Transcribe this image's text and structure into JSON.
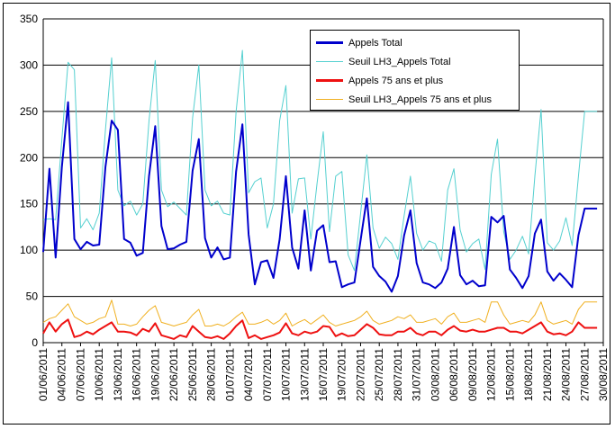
{
  "chart_data": {
    "type": "line",
    "title": "",
    "xlabel": "",
    "ylabel": "",
    "ylim": [
      0,
      350
    ],
    "yticks": [
      0,
      50,
      100,
      150,
      200,
      250,
      300,
      350
    ],
    "grid": "horizontal",
    "legend_position": "top-right",
    "x_start": "01/06/2011",
    "x_end": "30/08/2011",
    "xtick_labels": [
      "01/06/2011",
      "04/06/2011",
      "07/06/2011",
      "10/06/2011",
      "13/06/2011",
      "16/06/2011",
      "19/06/2011",
      "22/06/2011",
      "25/06/2011",
      "28/06/2011",
      "01/07/2011",
      "04/07/2011",
      "07/07/2011",
      "10/07/2011",
      "13/07/2011",
      "16/07/2011",
      "19/07/2011",
      "22/07/2011",
      "25/07/2011",
      "28/07/2011",
      "31/07/2011",
      "03/08/2011",
      "06/08/2011",
      "09/08/2011",
      "12/08/2011",
      "15/08/2011",
      "18/08/2011",
      "21/08/2011",
      "24/08/2011",
      "27/08/2011",
      "30/08/2011"
    ],
    "x": [
      "01/06/2011",
      "02/06/2011",
      "03/06/2011",
      "04/06/2011",
      "05/06/2011",
      "06/06/2011",
      "07/06/2011",
      "08/06/2011",
      "09/06/2011",
      "10/06/2011",
      "11/06/2011",
      "12/06/2011",
      "13/06/2011",
      "14/06/2011",
      "15/06/2011",
      "16/06/2011",
      "17/06/2011",
      "18/06/2011",
      "19/06/2011",
      "20/06/2011",
      "21/06/2011",
      "22/06/2011",
      "23/06/2011",
      "24/06/2011",
      "25/06/2011",
      "26/06/2011",
      "27/06/2011",
      "28/06/2011",
      "29/06/2011",
      "30/06/2011",
      "01/07/2011",
      "02/07/2011",
      "03/07/2011",
      "04/07/2011",
      "05/07/2011",
      "06/07/2011",
      "07/07/2011",
      "08/07/2011",
      "09/07/2011",
      "10/07/2011",
      "11/07/2011",
      "12/07/2011",
      "13/07/2011",
      "14/07/2011",
      "15/07/2011",
      "16/07/2011",
      "17/07/2011",
      "18/07/2011",
      "19/07/2011",
      "20/07/2011",
      "21/07/2011",
      "22/07/2011",
      "23/07/2011",
      "24/07/2011",
      "25/07/2011",
      "26/07/2011",
      "27/07/2011",
      "28/07/2011",
      "29/07/2011",
      "30/07/2011",
      "31/07/2011",
      "01/08/2011",
      "02/08/2011",
      "03/08/2011",
      "04/08/2011",
      "05/08/2011",
      "06/08/2011",
      "07/08/2011",
      "08/08/2011",
      "09/08/2011",
      "10/08/2011",
      "11/08/2011",
      "12/08/2011",
      "13/08/2011",
      "14/08/2011",
      "15/08/2011",
      "16/08/2011",
      "17/08/2011",
      "18/08/2011",
      "19/08/2011",
      "20/08/2011",
      "21/08/2011",
      "22/08/2011",
      "23/08/2011",
      "24/08/2011",
      "25/08/2011",
      "26/08/2011",
      "27/08/2011",
      "28/08/2011",
      "29/08/2011"
    ],
    "series": [
      {
        "name": "Appels Total",
        "color": "#0000cc",
        "width": 2,
        "values": [
          98,
          188,
          92,
          190,
          260,
          112,
          101,
          109,
          105,
          106,
          190,
          240,
          230,
          112,
          108,
          94,
          97,
          180,
          234,
          126,
          101,
          102,
          106,
          109,
          186,
          220,
          113,
          92,
          103,
          90,
          92,
          185,
          236,
          117,
          63,
          87,
          89,
          70,
          112,
          180,
          103,
          80,
          143,
          78,
          121,
          127,
          87,
          88,
          60,
          63,
          65,
          111,
          156,
          82,
          72,
          66,
          55,
          72,
          116,
          143,
          86,
          65,
          63,
          59,
          65,
          80,
          125,
          73,
          63,
          67,
          61,
          62,
          136,
          130,
          137,
          79,
          70,
          59,
          72,
          118,
          133,
          77,
          67,
          75,
          68,
          60,
          116,
          145,
          145,
          145
        ]
      },
      {
        "name": "Seuil LH3_Appels Total",
        "color": "#55d0d0",
        "width": 1,
        "values": [
          133,
          134,
          133,
          220,
          303,
          295,
          124,
          134,
          122,
          140,
          230,
          308,
          165,
          148,
          153,
          138,
          150,
          240,
          305,
          165,
          147,
          152,
          145,
          138,
          243,
          300,
          165,
          148,
          153,
          140,
          138,
          250,
          316,
          162,
          174,
          178,
          124,
          150,
          240,
          278,
          140,
          177,
          178,
          112,
          172,
          228,
          120,
          180,
          185,
          95,
          78,
          140,
          203,
          124,
          102,
          114,
          107,
          90,
          137,
          180,
          118,
          100,
          110,
          107,
          88,
          165,
          188,
          122,
          98,
          107,
          112,
          79,
          182,
          220,
          120,
          90,
          100,
          115,
          96,
          180,
          252,
          108,
          100,
          110,
          135,
          105,
          180,
          250,
          250,
          250
        ]
      },
      {
        "name": "Appels 75 ans et plus",
        "color": "#ee1111",
        "width": 2,
        "values": [
          10,
          22,
          12,
          20,
          25,
          6,
          8,
          12,
          9,
          14,
          18,
          22,
          12,
          12,
          11,
          8,
          15,
          12,
          21,
          8,
          6,
          4,
          8,
          6,
          18,
          12,
          6,
          5,
          7,
          4,
          10,
          18,
          24,
          5,
          8,
          4,
          6,
          8,
          11,
          21,
          10,
          8,
          12,
          10,
          12,
          18,
          17,
          7,
          10,
          7,
          8,
          14,
          20,
          16,
          9,
          8,
          8,
          12,
          12,
          16,
          10,
          8,
          12,
          12,
          8,
          14,
          18,
          13,
          12,
          14,
          12,
          12,
          14,
          16,
          16,
          12,
          12,
          10,
          14,
          18,
          22,
          12,
          9,
          10,
          8,
          12,
          22,
          16,
          16,
          16
        ]
      },
      {
        "name": "Seuil LH3_Appels 75 ans et plus",
        "color": "#f0b020",
        "width": 1,
        "values": [
          22,
          26,
          28,
          35,
          42,
          28,
          24,
          20,
          22,
          26,
          28,
          46,
          20,
          20,
          18,
          20,
          28,
          35,
          40,
          22,
          20,
          18,
          20,
          22,
          30,
          36,
          18,
          18,
          20,
          18,
          22,
          28,
          33,
          20,
          20,
          22,
          25,
          20,
          24,
          32,
          18,
          22,
          25,
          20,
          25,
          30,
          22,
          18,
          20,
          22,
          24,
          28,
          34,
          24,
          20,
          22,
          24,
          28,
          26,
          30,
          22,
          22,
          24,
          26,
          20,
          28,
          32,
          22,
          22,
          24,
          26,
          22,
          44,
          44,
          30,
          20,
          22,
          24,
          22,
          30,
          44,
          24,
          20,
          22,
          24,
          20,
          36,
          44,
          44,
          44
        ]
      }
    ]
  }
}
